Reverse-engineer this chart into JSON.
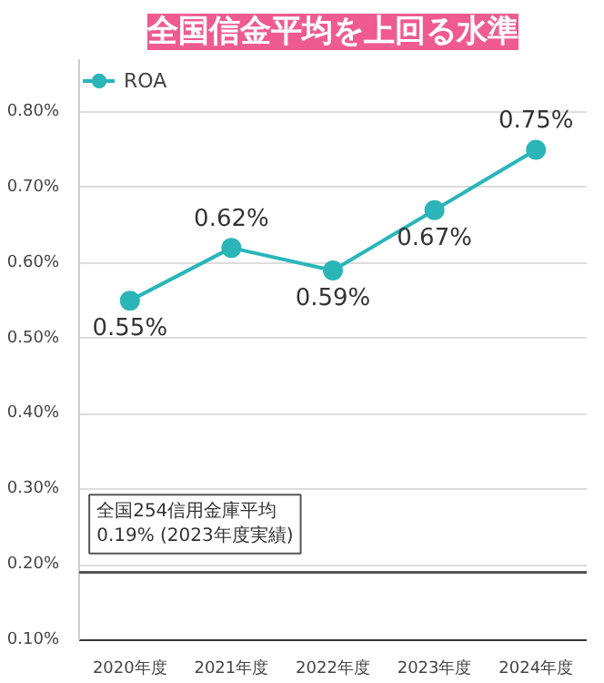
{
  "chart_data": {
    "type": "line",
    "title": "全国信金平均を上回る水準",
    "categories": [
      "2020年度",
      "2021年度",
      "2022年度",
      "2023年度",
      "2024年度"
    ],
    "series": [
      {
        "name": "ROA",
        "color": "#2bb5b8",
        "values": [
          0.55,
          0.62,
          0.59,
          0.67,
          0.75
        ]
      }
    ],
    "value_labels": [
      "0.55%",
      "0.62%",
      "0.59%",
      "0.67%",
      "0.75%"
    ],
    "ylim": [
      0.1,
      0.87
    ],
    "yticks": [
      {
        "value": 0.1,
        "label": "0.10%"
      },
      {
        "value": 0.2,
        "label": "0.20%"
      },
      {
        "value": 0.3,
        "label": "0.30%"
      },
      {
        "value": 0.4,
        "label": "0.40%"
      },
      {
        "value": 0.5,
        "label": "0.50%"
      },
      {
        "value": 0.6,
        "label": "0.60%"
      },
      {
        "value": 0.7,
        "label": "0.70%"
      },
      {
        "value": 0.8,
        "label": "0.80%"
      }
    ],
    "ref_lines": [
      {
        "axis": "y",
        "value": 0.19,
        "label": "全国254信用金庫平均\n0.19% (2023年度実績)",
        "color": "#555555"
      }
    ],
    "grid": "y",
    "legend": "top left",
    "marker": "circle",
    "line_style": "solid"
  }
}
